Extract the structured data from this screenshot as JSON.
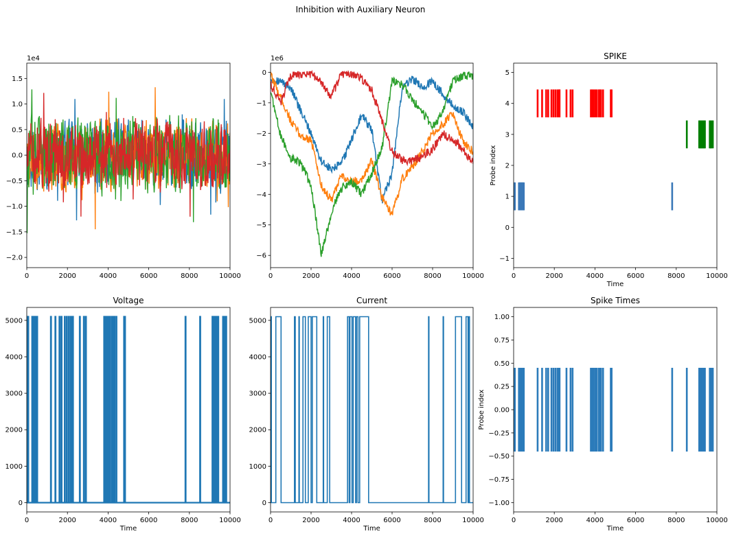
{
  "figure": {
    "suptitle": "Inhibition with Auxiliary Neuron"
  },
  "chart_data": [
    {
      "id": "p1",
      "type": "line",
      "title": "",
      "xlabel": "",
      "ylabel": "",
      "offset_text": "1e4",
      "xlim": [
        0,
        10000
      ],
      "ylim": [
        -2.2,
        1.8
      ],
      "xticks": [
        0,
        2000,
        4000,
        6000,
        8000,
        10000
      ],
      "yticks": [
        -2.0,
        -1.5,
        -1.0,
        -0.5,
        0.0,
        0.5,
        1.0,
        1.5
      ],
      "ytick_labels": [
        "−2.0",
        "−1.5",
        "−1.0",
        "−0.5",
        "0.0",
        "0.5",
        "1.0",
        "1.5"
      ],
      "note_values": "noisy signals, values in units of 1e4",
      "series": [
        {
          "color": "#1f77b4",
          "amplitude": 0.55,
          "seed": 11
        },
        {
          "color": "#ff7f0e",
          "amplitude": 0.55,
          "seed": 23
        },
        {
          "color": "#2ca02c",
          "amplitude": 0.6,
          "seed": 37
        },
        {
          "color": "#d62728",
          "amplitude": 0.55,
          "seed": 51
        }
      ]
    },
    {
      "id": "p2",
      "type": "line",
      "title": "",
      "xlabel": "",
      "ylabel": "",
      "offset_text": "1e6",
      "xlim": [
        0,
        10000
      ],
      "ylim": [
        -6.4,
        0.3
      ],
      "xticks": [
        0,
        2000,
        4000,
        6000,
        8000,
        10000
      ],
      "yticks": [
        0,
        -1,
        -2,
        -3,
        -4,
        -5,
        -6
      ],
      "ytick_labels": [
        "0",
        "−1",
        "−2",
        "−3",
        "−4",
        "−5",
        "−6"
      ],
      "series": [
        {
          "color": "#1f77b4",
          "x": [
            0,
            500,
            1000,
            1500,
            2000,
            2500,
            3000,
            3500,
            4000,
            4500,
            5000,
            5500,
            6000,
            6500,
            7000,
            7500,
            8000,
            8500,
            9000,
            9500,
            10000
          ],
          "y": [
            -0.2,
            -0.3,
            -0.5,
            -1.3,
            -2.0,
            -2.9,
            -3.2,
            -3.0,
            -2.2,
            -1.4,
            -1.9,
            -4.2,
            -3.3,
            -0.5,
            -0.2,
            -0.5,
            -0.3,
            -0.7,
            -1.1,
            -1.3,
            -1.8
          ]
        },
        {
          "color": "#ff7f0e",
          "x": [
            0,
            500,
            1000,
            1500,
            2000,
            2500,
            3000,
            3500,
            4000,
            4500,
            5000,
            5500,
            6000,
            6500,
            7000,
            7500,
            8000,
            8500,
            9000,
            9500,
            10000
          ],
          "y": [
            -0.1,
            -0.8,
            -1.6,
            -2.1,
            -2.2,
            -3.7,
            -4.2,
            -3.4,
            -3.6,
            -3.5,
            -2.9,
            -4.1,
            -4.7,
            -3.5,
            -3.1,
            -2.6,
            -2.0,
            -1.7,
            -1.3,
            -2.3,
            -2.6
          ]
        },
        {
          "color": "#2ca02c",
          "x": [
            0,
            500,
            1000,
            1500,
            2000,
            2500,
            3000,
            3500,
            4000,
            4500,
            5000,
            5500,
            6000,
            6500,
            7000,
            7500,
            8000,
            8500,
            9000,
            9500,
            10000
          ],
          "y": [
            -0.6,
            -2.1,
            -2.8,
            -3.0,
            -3.7,
            -6.0,
            -4.6,
            -3.8,
            -3.6,
            -4.0,
            -3.3,
            -2.5,
            -0.3,
            -0.4,
            -0.9,
            -1.3,
            -1.8,
            -1.3,
            -0.3,
            -0.1,
            -0.1
          ]
        },
        {
          "color": "#d62728",
          "x": [
            0,
            500,
            1000,
            1500,
            2000,
            2500,
            3000,
            3500,
            4000,
            4500,
            5000,
            5500,
            6000,
            6500,
            7000,
            7500,
            8000,
            8500,
            9000,
            9500,
            10000
          ],
          "y": [
            -0.4,
            -1.0,
            -0.1,
            -0.05,
            -0.05,
            -0.35,
            -0.8,
            -0.05,
            -0.05,
            -0.2,
            -0.6,
            -1.6,
            -2.6,
            -2.9,
            -2.9,
            -2.8,
            -2.5,
            -2.0,
            -2.2,
            -2.5,
            -3.0
          ]
        }
      ]
    },
    {
      "id": "p3",
      "type": "eventplot",
      "title": "SPIKE",
      "xlabel": "Time",
      "ylabel": "Probe index",
      "xlim": [
        0,
        10000
      ],
      "ylim": [
        -1.3,
        5.3
      ],
      "xticks": [
        0,
        2000,
        4000,
        6000,
        8000,
        10000
      ],
      "yticks": [
        -1,
        0,
        1,
        2,
        3,
        4,
        5
      ],
      "ytick_labels": [
        "−1",
        "0",
        "1",
        "2",
        "3",
        "4",
        "5"
      ],
      "rows": [
        {
          "index": 1,
          "color": "#3a78b8",
          "times": [
            20,
            60,
            260,
            300,
            340,
            380,
            420,
            460,
            500,
            7800
          ]
        },
        {
          "index": 3,
          "color": "#007f00",
          "times": [
            8520,
            9130,
            9170,
            9210,
            9250,
            9290,
            9330,
            9370,
            9410,
            9650,
            9690,
            9730,
            9800
          ]
        },
        {
          "index": 4,
          "color": "#ff0000",
          "times": [
            1180,
            1400,
            1600,
            1700,
            1860,
            1960,
            2060,
            2160,
            2240,
            2260,
            2600,
            2800,
            2900,
            3800,
            3860,
            3920,
            4000,
            4080,
            4180,
            4240,
            4300,
            4400,
            4780,
            4820
          ]
        }
      ]
    },
    {
      "id": "p4",
      "type": "line",
      "title": "Voltage",
      "xlabel": "Time",
      "ylabel": "",
      "xlim": [
        0,
        10000
      ],
      "ylim": [
        -255,
        5355
      ],
      "xticks": [
        0,
        2000,
        4000,
        6000,
        8000,
        10000
      ],
      "yticks": [
        0,
        1000,
        2000,
        3000,
        4000,
        5000
      ],
      "ytick_labels": [
        "0",
        "1000",
        "2000",
        "3000",
        "4000",
        "5000"
      ],
      "spike_value": 5100,
      "pulse_width": 20,
      "spike_times": [
        20,
        60,
        260,
        300,
        340,
        380,
        420,
        460,
        500,
        1180,
        1400,
        1600,
        1700,
        1860,
        1960,
        2060,
        2160,
        2240,
        2260,
        2600,
        2800,
        2900,
        3800,
        3860,
        3920,
        4000,
        4080,
        4180,
        4240,
        4300,
        4400,
        4780,
        4820,
        7800,
        8520,
        9130,
        9170,
        9210,
        9250,
        9290,
        9330,
        9370,
        9410,
        9650,
        9690,
        9730,
        9800
      ],
      "series": [
        {
          "color": "#1f77b4"
        }
      ]
    },
    {
      "id": "p5",
      "type": "line",
      "title": "Current",
      "xlabel": "Time",
      "ylabel": "",
      "xlim": [
        0,
        10000
      ],
      "ylim": [
        -255,
        5355
      ],
      "xticks": [
        0,
        2000,
        4000,
        6000,
        8000,
        10000
      ],
      "yticks": [
        0,
        1000,
        2000,
        3000,
        4000,
        5000
      ],
      "ytick_labels": [
        "0",
        "1000",
        "2000",
        "3000",
        "4000",
        "5000"
      ],
      "high": 5100,
      "high_intervals": [
        [
          20,
          40
        ],
        [
          260,
          520
        ],
        [
          1180,
          1220
        ],
        [
          1400,
          1420
        ],
        [
          1600,
          1720
        ],
        [
          1860,
          2000
        ],
        [
          2060,
          2280
        ],
        [
          2600,
          2620
        ],
        [
          2800,
          2920
        ],
        [
          3800,
          3880
        ],
        [
          3920,
          4020
        ],
        [
          4080,
          4200
        ],
        [
          4240,
          4320
        ],
        [
          4400,
          4840
        ],
        [
          7800,
          7820
        ],
        [
          8520,
          8540
        ],
        [
          9130,
          9430
        ],
        [
          9650,
          9750
        ],
        [
          9800,
          9820
        ]
      ],
      "series": [
        {
          "color": "#1f77b4"
        }
      ]
    },
    {
      "id": "p6",
      "type": "eventplot",
      "title": "Spike Times",
      "xlabel": "Time",
      "ylabel": "Probe index",
      "xlim": [
        0,
        10000
      ],
      "ylim": [
        -1.1,
        1.1
      ],
      "xticks": [
        0,
        2000,
        4000,
        6000,
        8000,
        10000
      ],
      "yticks": [
        -1.0,
        -0.75,
        -0.5,
        -0.25,
        0.0,
        0.25,
        0.5,
        0.75,
        1.0
      ],
      "ytick_labels": [
        "−1.00",
        "−0.75",
        "−0.50",
        "−0.25",
        "0.00",
        "0.25",
        "0.50",
        "0.75",
        "1.00"
      ],
      "rows": [
        {
          "index": 0,
          "color": "#2b7bba",
          "times": [
            20,
            60,
            260,
            300,
            340,
            380,
            420,
            460,
            500,
            1180,
            1400,
            1600,
            1700,
            1860,
            1960,
            2060,
            2160,
            2240,
            2260,
            2600,
            2800,
            2900,
            3800,
            3860,
            3920,
            4000,
            4080,
            4180,
            4240,
            4300,
            4400,
            4780,
            4820,
            7800,
            8520,
            9130,
            9170,
            9210,
            9250,
            9290,
            9330,
            9370,
            9410,
            9650,
            9690,
            9730,
            9800
          ]
        }
      ]
    }
  ]
}
